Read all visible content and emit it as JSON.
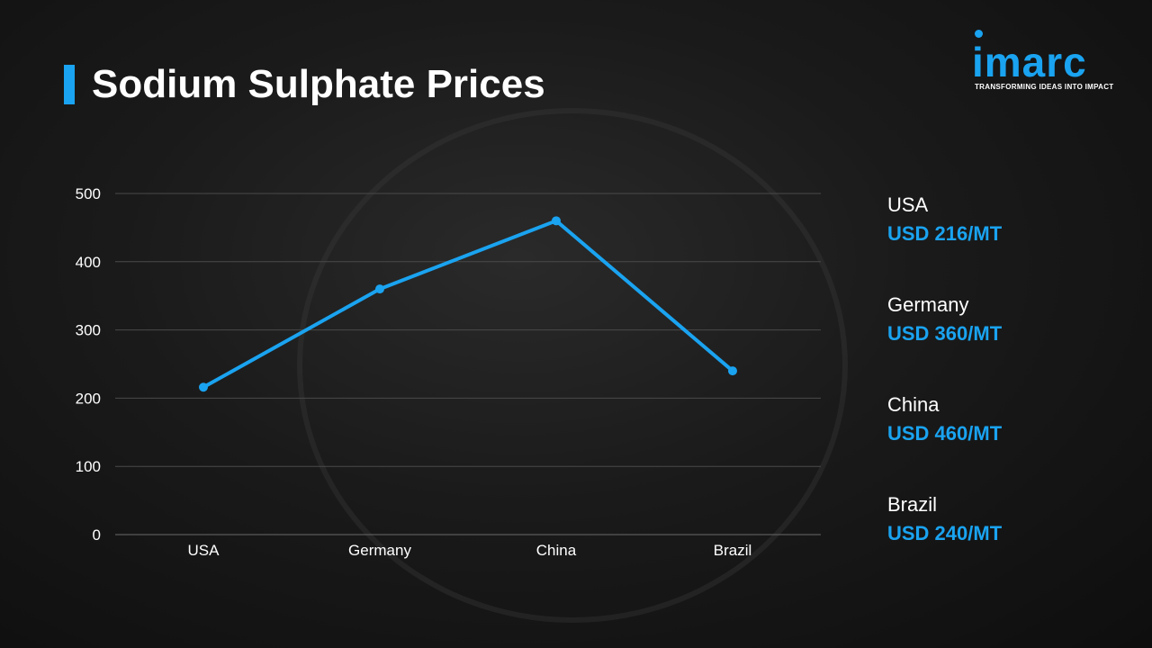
{
  "title": "Sodium Sulphate Prices",
  "logo": {
    "text": "imarc",
    "tagline": "TRANSFORMING IDEAS INTO IMPACT"
  },
  "colors": {
    "accent": "#1aa3f0",
    "text": "#ffffff",
    "grid": "#4a4a4a"
  },
  "chart_data": {
    "type": "line",
    "categories": [
      "USA",
      "Germany",
      "China",
      "Brazil"
    ],
    "values": [
      216,
      360,
      460,
      240
    ],
    "ylim": [
      0,
      500
    ],
    "yticks": [
      0,
      100,
      200,
      300,
      400,
      500
    ],
    "grid": true,
    "xlabel": "",
    "ylabel": "",
    "legend_position": "right"
  },
  "legend": [
    {
      "country": "USA",
      "price": "USD 216/MT"
    },
    {
      "country": "Germany",
      "price": "USD 360/MT"
    },
    {
      "country": "China",
      "price": "USD 460/MT"
    },
    {
      "country": "Brazil",
      "price": "USD 240/MT"
    }
  ]
}
